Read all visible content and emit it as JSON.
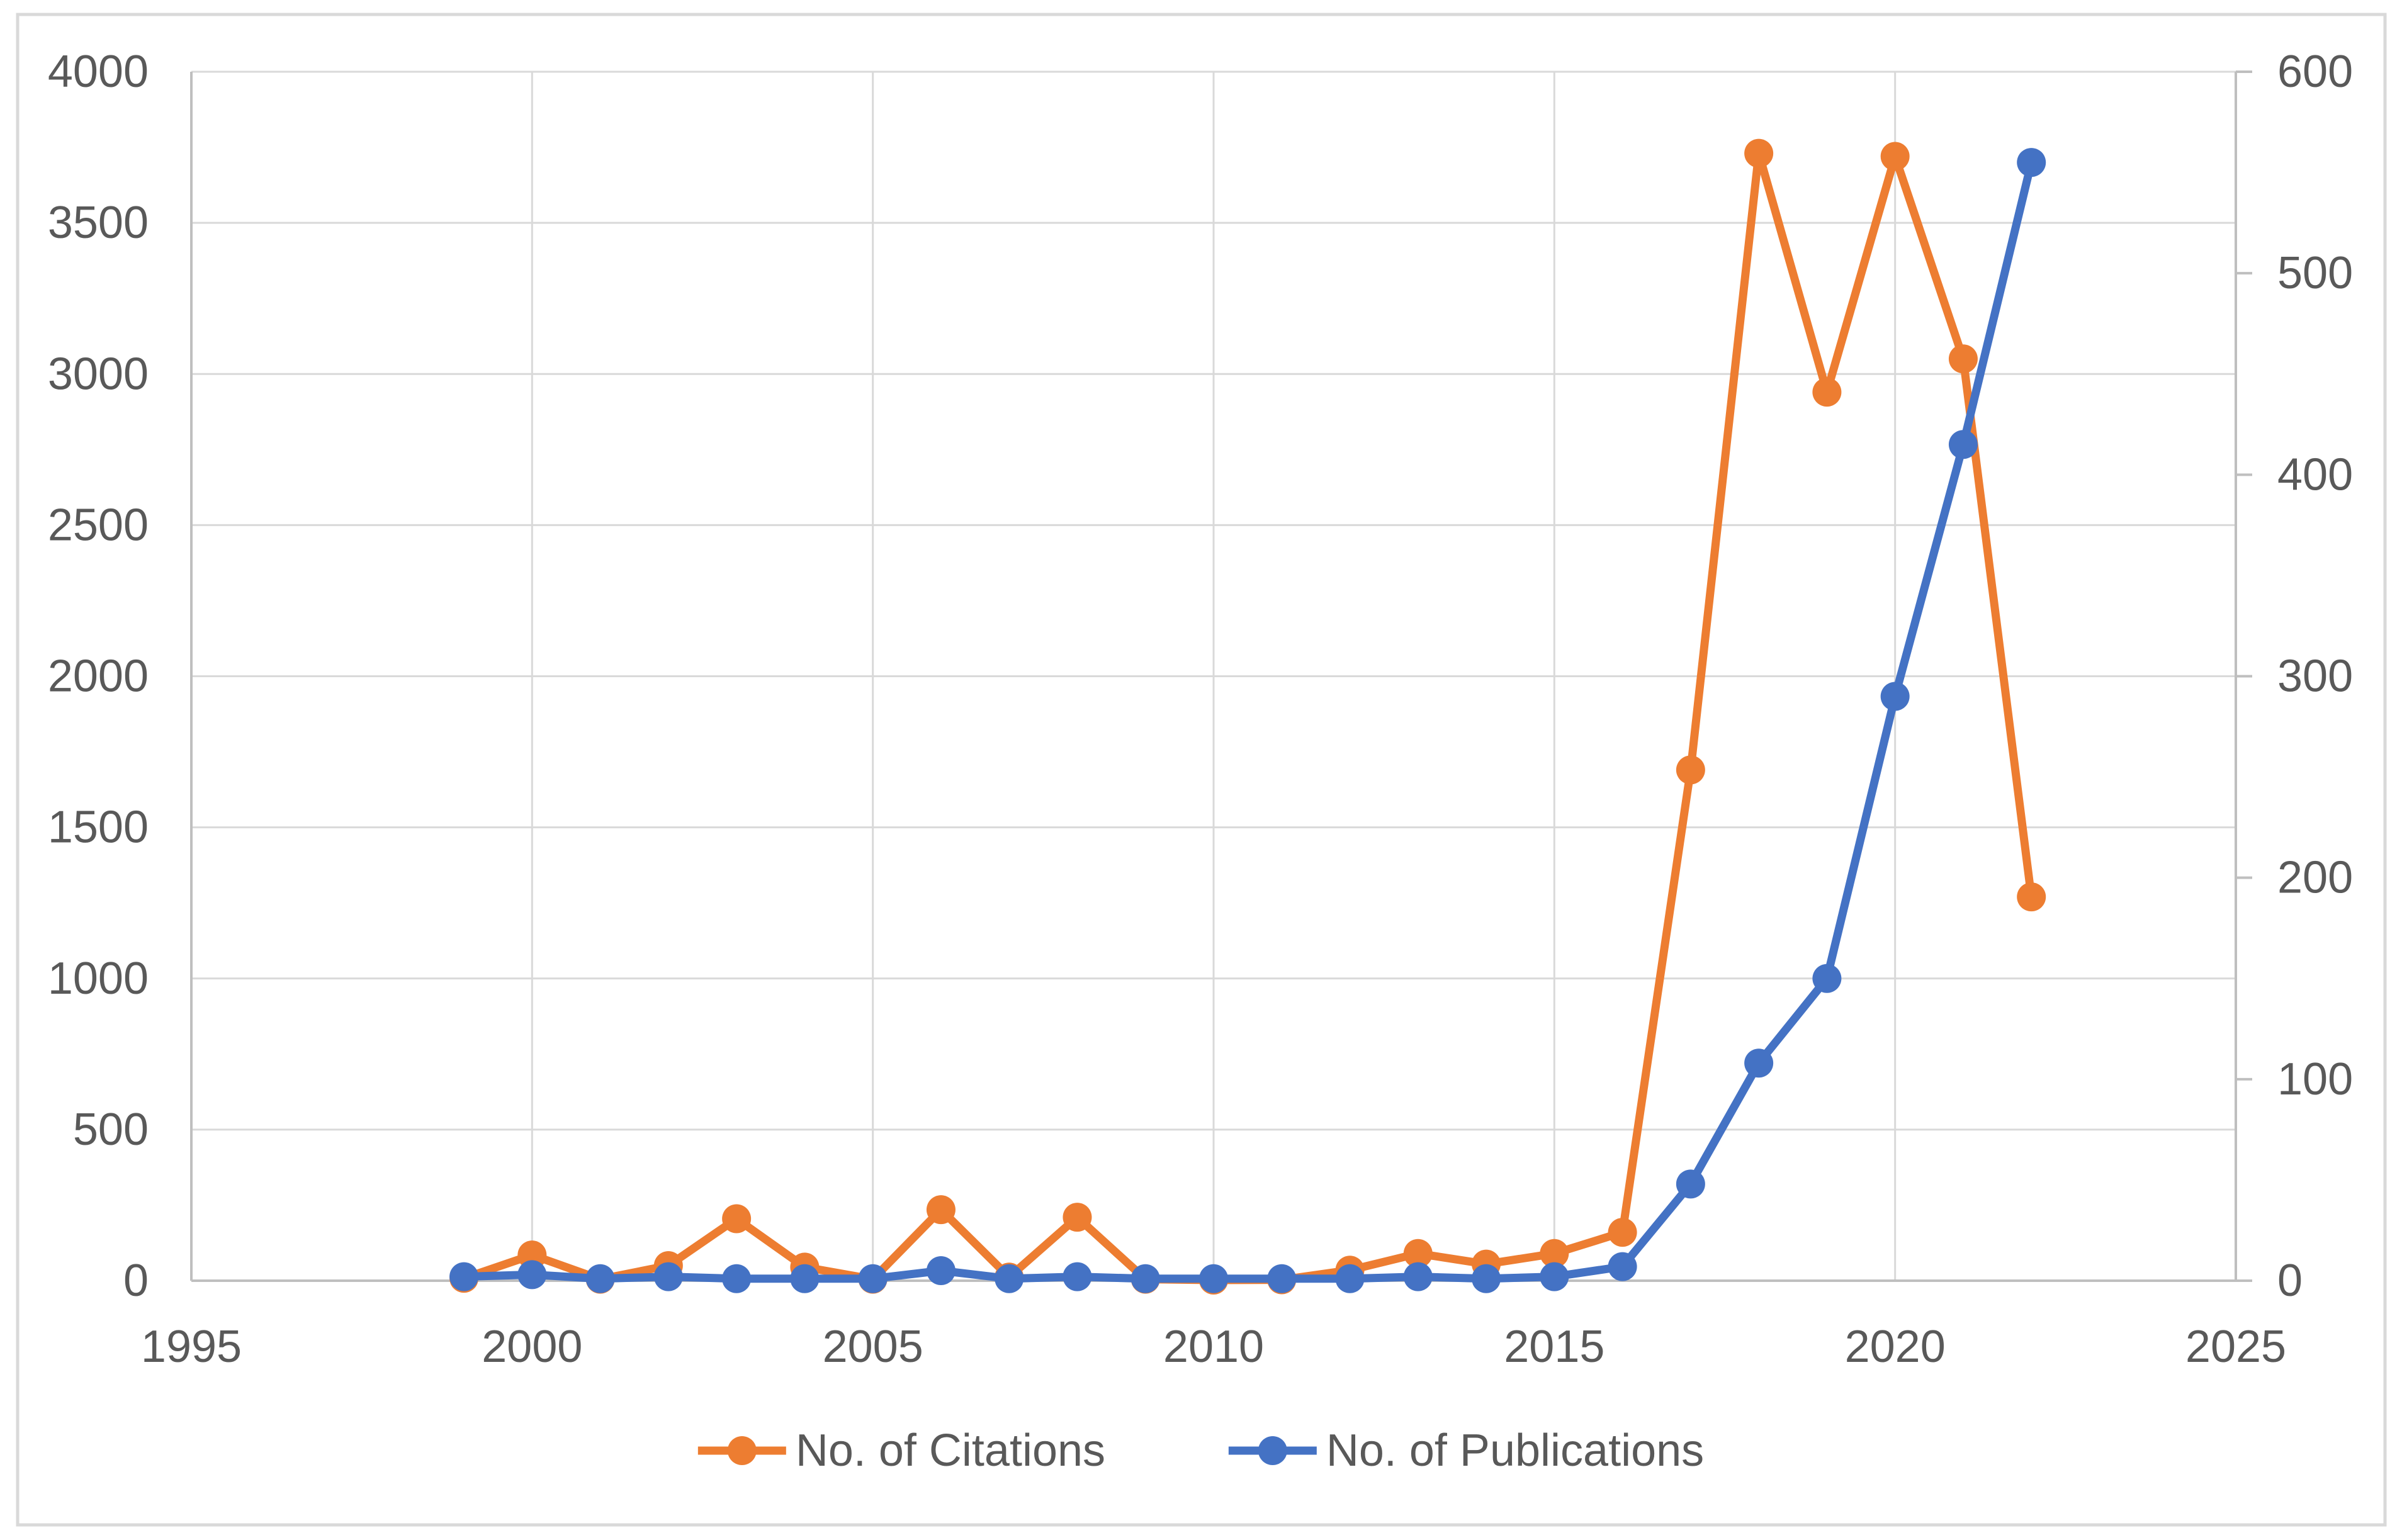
{
  "chart_data": {
    "type": "line",
    "x": [
      1999,
      2000,
      2001,
      2002,
      2003,
      2004,
      2005,
      2006,
      2007,
      2008,
      2009,
      2010,
      2011,
      2012,
      2013,
      2014,
      2015,
      2016,
      2017,
      2018,
      2019,
      2020,
      2021,
      2022
    ],
    "series": [
      {
        "name": "No. of Citations",
        "axis": "left",
        "color": "#ED7D31",
        "marker": "circle",
        "values": [
          8,
          85,
          5,
          50,
          205,
          45,
          5,
          235,
          12,
          210,
          5,
          2,
          3,
          35,
          90,
          55,
          90,
          160,
          1690,
          3730,
          2940,
          3720,
          3050,
          1270
        ]
      },
      {
        "name": "No. of Publications",
        "axis": "right",
        "color": "#4472C4",
        "marker": "circle",
        "values": [
          2,
          3,
          1,
          2,
          1,
          1,
          1,
          5,
          1,
          2,
          1,
          1,
          1,
          1,
          2,
          1,
          2,
          7,
          48,
          108,
          150,
          290,
          415,
          555
        ]
      }
    ],
    "title": "",
    "xlabel": "",
    "ylabel_left": "",
    "ylabel_right": "",
    "x_axis": {
      "range": [
        1995,
        2025
      ],
      "ticks": [
        1995,
        2000,
        2005,
        2010,
        2015,
        2020,
        2025
      ]
    },
    "y_axis_left": {
      "range": [
        0,
        4000
      ],
      "ticks": [
        0,
        500,
        1000,
        1500,
        2000,
        2500,
        3000,
        3500,
        4000
      ]
    },
    "y_axis_right": {
      "range": [
        0,
        600
      ],
      "ticks": [
        0,
        100,
        200,
        300,
        400,
        500,
        600
      ]
    },
    "grid": {
      "horizontal": true,
      "vertical": true
    },
    "legend": {
      "position": "bottom",
      "entries": [
        "No. of Citations",
        "No. of Publications"
      ]
    },
    "colors": {
      "gridline": "#D9D9D9",
      "axis_line": "#BFBFBF",
      "outer_border": "#D9D9D9",
      "tick_label": "#595959",
      "background": "#FFFFFF"
    }
  }
}
